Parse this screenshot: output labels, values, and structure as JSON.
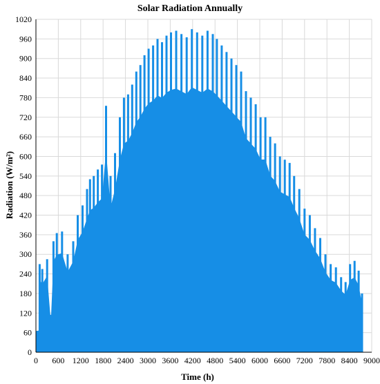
{
  "chart_data": {
    "type": "bar",
    "title": "Solar Radiation Annually",
    "xlabel": "Time (h)",
    "ylabel": "Radiation (W/m²)",
    "xlim": [
      0,
      9000
    ],
    "ylim": [
      0,
      1020
    ],
    "xticks": [
      0,
      600,
      1200,
      1800,
      2400,
      3000,
      3600,
      4200,
      4800,
      5400,
      6000,
      6600,
      7200,
      7800,
      8400,
      9000
    ],
    "yticks": [
      0,
      60,
      120,
      180,
      240,
      300,
      360,
      420,
      480,
      540,
      600,
      660,
      720,
      780,
      840,
      900,
      960,
      1020
    ],
    "grid": true,
    "color": "#168ee6",
    "series": [
      {
        "x": [
          0,
          300,
          600,
          900,
          1200,
          1500,
          1800,
          2100,
          2400,
          2700,
          3000,
          3300,
          3600,
          3900,
          4200,
          4500,
          4800,
          5100,
          5400,
          5700,
          6000,
          6300,
          6600,
          6900,
          7200,
          7500,
          7800,
          8100,
          8400,
          8760
        ],
        "y": [
          65,
          70,
          80,
          95,
          110,
          125,
          140,
          150,
          160,
          165,
          170,
          170,
          170,
          170,
          170,
          170,
          170,
          165,
          160,
          150,
          140,
          125,
          110,
          95,
          85,
          75,
          65,
          60,
          55,
          55
        ]
      },
      {
        "x": [
          100,
          170,
          300,
          400,
          470,
          560,
          700,
          850,
          1000,
          1120,
          1250,
          1370,
          1450,
          1550,
          1660,
          1770,
          1880,
          2000,
          2120,
          2250,
          2360,
          2470,
          2580,
          2690,
          2800,
          2910,
          3020,
          3140,
          3260,
          3380,
          3500,
          3620,
          3760,
          3900,
          4040,
          4180,
          4320,
          4460,
          4600,
          4740,
          4850,
          4980,
          5110,
          5240,
          5370,
          5500,
          5630,
          5760,
          5890,
          6020,
          6150,
          6280,
          6410,
          6540,
          6670,
          6800,
          6920,
          7060,
          7200,
          7340,
          7480,
          7620,
          7760,
          7900,
          8040,
          8180,
          8300,
          8420,
          8540,
          8650,
          8740
        ],
        "y": [
          270,
          255,
          285,
          115,
          340,
          365,
          370,
          300,
          340,
          420,
          450,
          500,
          530,
          540,
          560,
          575,
          755,
          540,
          610,
          720,
          780,
          790,
          820,
          860,
          880,
          910,
          930,
          940,
          960,
          950,
          970,
          980,
          985,
          975,
          965,
          990,
          980,
          970,
          985,
          975,
          960,
          940,
          920,
          900,
          880,
          860,
          800,
          780,
          760,
          720,
          720,
          660,
          640,
          600,
          590,
          580,
          540,
          500,
          440,
          420,
          380,
          350,
          300,
          270,
          260,
          230,
          215,
          270,
          280,
          250,
          180
        ]
      }
    ]
  }
}
